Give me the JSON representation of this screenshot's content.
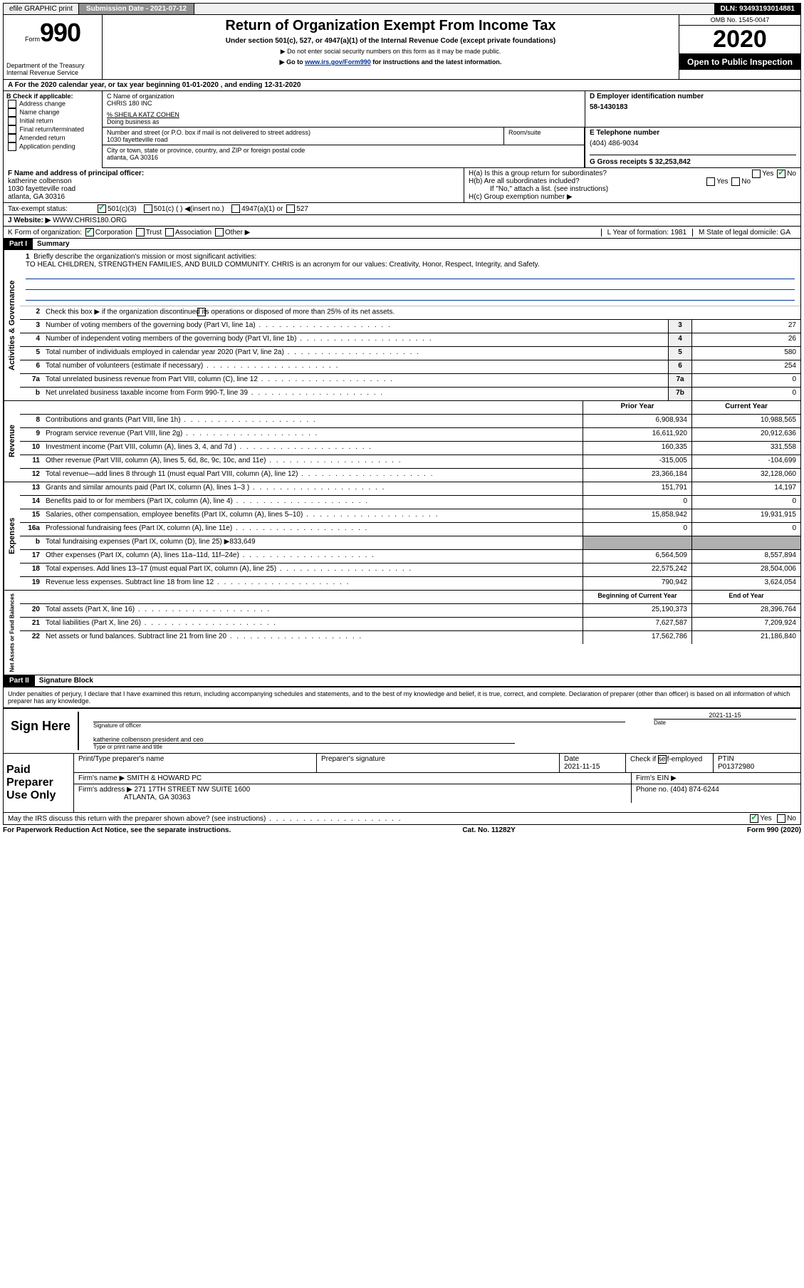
{
  "topbar": {
    "efile": "efile GRAPHIC print",
    "submission_label": "Submission Date - 2021-07-12",
    "dln": "DLN: 93493193014881"
  },
  "header": {
    "form_word": "Form",
    "form_no": "990",
    "title": "Return of Organization Exempt From Income Tax",
    "subtitle": "Under section 501(c), 527, or 4947(a)(1) of the Internal Revenue Code (except private foundations)",
    "note1": "▶ Do not enter social security numbers on this form as it may be made public.",
    "note2_pre": "▶ Go to ",
    "note2_link": "www.irs.gov/Form990",
    "note2_post": " for instructions and the latest information.",
    "dept": "Department of the Treasury",
    "irs": "Internal Revenue Service",
    "omb": "OMB No. 1545-0047",
    "year": "2020",
    "open": "Open to Public Inspection"
  },
  "period": {
    "label": "A For the 2020 calendar year, or tax year beginning 01-01-2020  , and ending 12-31-2020"
  },
  "box_b": {
    "label": "B Check if applicable:",
    "items": [
      "Address change",
      "Name change",
      "Initial return",
      "Final return/terminated",
      "Amended return",
      "Application pending"
    ]
  },
  "box_c": {
    "label": "C Name of organization",
    "name": "CHRIS 180 INC",
    "care_of": "% SHEILA KATZ COHEN",
    "dba_label": "Doing business as",
    "addr_label": "Number and street (or P.O. box if mail is not delivered to street address)",
    "addr": "1030 fayetteville road",
    "room_label": "Room/suite",
    "city_label": "City or town, state or province, country, and ZIP or foreign postal code",
    "city": "atlanta, GA  30316"
  },
  "box_d": {
    "label": "D Employer identification number",
    "ein": "58-1430183"
  },
  "box_e": {
    "label": "E Telephone number",
    "phone": "(404) 486-9034"
  },
  "box_g": {
    "label": "G Gross receipts $ 32,253,842"
  },
  "box_f": {
    "label": "F  Name and address of principal officer:",
    "name": "katherine colbenson",
    "addr1": "1030 fayetteville road",
    "addr2": "atlanta, GA  30316"
  },
  "box_h": {
    "ha": "H(a)  Is this a group return for subordinates?",
    "hb": "H(b)  Are all subordinates included?",
    "hb_note": "If \"No,\" attach a list. (see instructions)",
    "hc": "H(c)  Group exemption number ▶",
    "yes": "Yes",
    "no": "No"
  },
  "tax_status": {
    "label": "Tax-exempt status:",
    "opt1": "501(c)(3)",
    "opt2": "501(c) (  ) ◀(insert no.)",
    "opt3": "4947(a)(1) or",
    "opt4": "527"
  },
  "website": {
    "label": "J   Website: ▶",
    "value": "WWW.CHRIS180.ORG"
  },
  "row_k": {
    "label": "K Form of organization:",
    "corp": "Corporation",
    "trust": "Trust",
    "assoc": "Association",
    "other": "Other ▶"
  },
  "row_l": {
    "label": "L Year of formation: 1981"
  },
  "row_m": {
    "label": "M State of legal domicile: GA"
  },
  "part1": {
    "header": "Part I",
    "title": "Summary",
    "line1_label": "Briefly describe the organization's mission or most significant activities:",
    "mission": "TO HEAL CHILDREN, STRENGTHEN FAMILIES, AND BUILD COMMUNITY. CHRIS is an acronym for our values: Creativity, Honor, Respect, Integrity, and Safety.",
    "line2_label": "Check this box ▶      if the organization discontinued its operations or disposed of more than 25% of its net assets.",
    "vtab_gov": "Activities & Governance",
    "vtab_rev": "Revenue",
    "vtab_exp": "Expenses",
    "vtab_net": "Net Assets or Fund Balances",
    "prior_year": "Prior Year",
    "current_year": "Current Year",
    "beg_year": "Beginning of Current Year",
    "end_year": "End of Year",
    "lines_gov": [
      {
        "n": "3",
        "label": "Number of voting members of the governing body (Part VI, line 1a)",
        "box": "3",
        "val": "27"
      },
      {
        "n": "4",
        "label": "Number of independent voting members of the governing body (Part VI, line 1b)",
        "box": "4",
        "val": "26"
      },
      {
        "n": "5",
        "label": "Total number of individuals employed in calendar year 2020 (Part V, line 2a)",
        "box": "5",
        "val": "580"
      },
      {
        "n": "6",
        "label": "Total number of volunteers (estimate if necessary)",
        "box": "6",
        "val": "254"
      },
      {
        "n": "7a",
        "label": "Total unrelated business revenue from Part VIII, column (C), line 12",
        "box": "7a",
        "val": "0"
      },
      {
        "n": "b",
        "label": "Net unrelated business taxable income from Form 990-T, line 39",
        "box": "7b",
        "val": "0"
      }
    ],
    "lines_rev": [
      {
        "n": "8",
        "label": "Contributions and grants (Part VIII, line 1h)",
        "prior": "6,908,934",
        "cur": "10,988,565"
      },
      {
        "n": "9",
        "label": "Program service revenue (Part VIII, line 2g)",
        "prior": "16,611,920",
        "cur": "20,912,636"
      },
      {
        "n": "10",
        "label": "Investment income (Part VIII, column (A), lines 3, 4, and 7d )",
        "prior": "160,335",
        "cur": "331,558"
      },
      {
        "n": "11",
        "label": "Other revenue (Part VIII, column (A), lines 5, 6d, 8c, 9c, 10c, and 11e)",
        "prior": "-315,005",
        "cur": "-104,699"
      },
      {
        "n": "12",
        "label": "Total revenue—add lines 8 through 11 (must equal Part VIII, column (A), line 12)",
        "prior": "23,366,184",
        "cur": "32,128,060"
      }
    ],
    "lines_exp": [
      {
        "n": "13",
        "label": "Grants and similar amounts paid (Part IX, column (A), lines 1–3 )",
        "prior": "151,791",
        "cur": "14,197"
      },
      {
        "n": "14",
        "label": "Benefits paid to or for members (Part IX, column (A), line 4)",
        "prior": "0",
        "cur": "0"
      },
      {
        "n": "15",
        "label": "Salaries, other compensation, employee benefits (Part IX, column (A), lines 5–10)",
        "prior": "15,858,942",
        "cur": "19,931,915"
      },
      {
        "n": "16a",
        "label": "Professional fundraising fees (Part IX, column (A), line 11e)",
        "prior": "0",
        "cur": "0"
      },
      {
        "n": "b",
        "label": "Total fundraising expenses (Part IX, column (D), line 25) ▶833,649",
        "prior": "",
        "cur": "",
        "gray": true
      },
      {
        "n": "17",
        "label": "Other expenses (Part IX, column (A), lines 11a–11d, 11f–24e)",
        "prior": "6,564,509",
        "cur": "8,557,894"
      },
      {
        "n": "18",
        "label": "Total expenses. Add lines 13–17 (must equal Part IX, column (A), line 25)",
        "prior": "22,575,242",
        "cur": "28,504,006"
      },
      {
        "n": "19",
        "label": "Revenue less expenses. Subtract line 18 from line 12",
        "prior": "790,942",
        "cur": "3,624,054"
      }
    ],
    "lines_net": [
      {
        "n": "20",
        "label": "Total assets (Part X, line 16)",
        "prior": "25,190,373",
        "cur": "28,396,764"
      },
      {
        "n": "21",
        "label": "Total liabilities (Part X, line 26)",
        "prior": "7,627,587",
        "cur": "7,209,924"
      },
      {
        "n": "22",
        "label": "Net assets or fund balances. Subtract line 21 from line 20",
        "prior": "17,562,786",
        "cur": "21,186,840"
      }
    ]
  },
  "part2": {
    "header": "Part II",
    "title": "Signature Block",
    "penalties": "Under penalties of perjury, I declare that I have examined this return, including accompanying schedules and statements, and to the best of my knowledge and belief, it is true, correct, and complete. Declaration of preparer (other than officer) is based on all information of which preparer has any knowledge.",
    "sign_here": "Sign Here",
    "sig_officer": "Signature of officer",
    "date_label": "Date",
    "date_val": "2021-11-15",
    "name_title": "katherine colbenson  president and ceo",
    "type_name": "Type or print name and title",
    "paid_label": "Paid Preparer Use Only",
    "prep_name_label": "Print/Type preparer's name",
    "prep_sig_label": "Preparer's signature",
    "prep_date_label": "Date",
    "prep_date": "2021-11-15",
    "check_se": "Check       if self-employed",
    "ptin_label": "PTIN",
    "ptin": "P01372980",
    "firm_name_label": "Firm's name   ▶",
    "firm_name": "SMITH & HOWARD PC",
    "firm_ein_label": "Firm's EIN ▶",
    "firm_addr_label": "Firm's address ▶",
    "firm_addr1": "271 17TH STREET NW SUITE 1600",
    "firm_addr2": "ATLANTA, GA  30363",
    "firm_phone_label": "Phone no. (404) 874-6244",
    "discuss": "May the IRS discuss this return with the preparer shown above? (see instructions)"
  },
  "footer": {
    "left": "For Paperwork Reduction Act Notice, see the separate instructions.",
    "center": "Cat. No. 11282Y",
    "right": "Form 990 (2020)"
  },
  "colors": {
    "link": "#003399",
    "check_green": "#0a4"
  }
}
